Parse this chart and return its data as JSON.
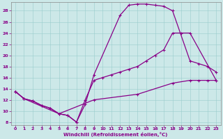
{
  "xlabel": "Windchill (Refroidissement éolien,°C)",
  "bg_color": "#cce8e8",
  "line_color": "#880088",
  "xlim": [
    -0.5,
    23.5
  ],
  "ylim": [
    7.5,
    29.5
  ],
  "xticks": [
    0,
    1,
    2,
    3,
    4,
    5,
    6,
    7,
    8,
    9,
    10,
    11,
    12,
    13,
    14,
    15,
    16,
    17,
    18,
    19,
    20,
    21,
    22,
    23
  ],
  "yticks": [
    8,
    10,
    12,
    14,
    16,
    18,
    20,
    22,
    24,
    26,
    28
  ],
  "line1_x": [
    0,
    1,
    2,
    3,
    4,
    5,
    6,
    7,
    8,
    9,
    12,
    13,
    14,
    15,
    16,
    17,
    18,
    20,
    21,
    22,
    23
  ],
  "line1_y": [
    13.5,
    12.2,
    11.8,
    11.0,
    10.5,
    9.5,
    9.2,
    8.0,
    11.2,
    16.5,
    27.2,
    29.0,
    29.2,
    29.2,
    29.0,
    28.8,
    28.0,
    19.0,
    18.5,
    18.0,
    17.0
  ],
  "line2_x": [
    0,
    1,
    2,
    3,
    4,
    5,
    6,
    7,
    8,
    9,
    10,
    11,
    12,
    13,
    14,
    15,
    16,
    17,
    18,
    19,
    20,
    23
  ],
  "line2_y": [
    13.5,
    12.2,
    11.8,
    11.0,
    10.5,
    9.5,
    9.2,
    8.0,
    12.0,
    15.5,
    16.0,
    16.5,
    17.0,
    17.5,
    18.0,
    19.0,
    20.0,
    21.0,
    24.0,
    24.0,
    24.0,
    15.5
  ],
  "line3_x": [
    0,
    1,
    5,
    9,
    14,
    18,
    20,
    21,
    22,
    23
  ],
  "line3_y": [
    13.5,
    12.2,
    9.5,
    12.0,
    13.0,
    15.0,
    15.5,
    15.5,
    15.5,
    15.5
  ]
}
